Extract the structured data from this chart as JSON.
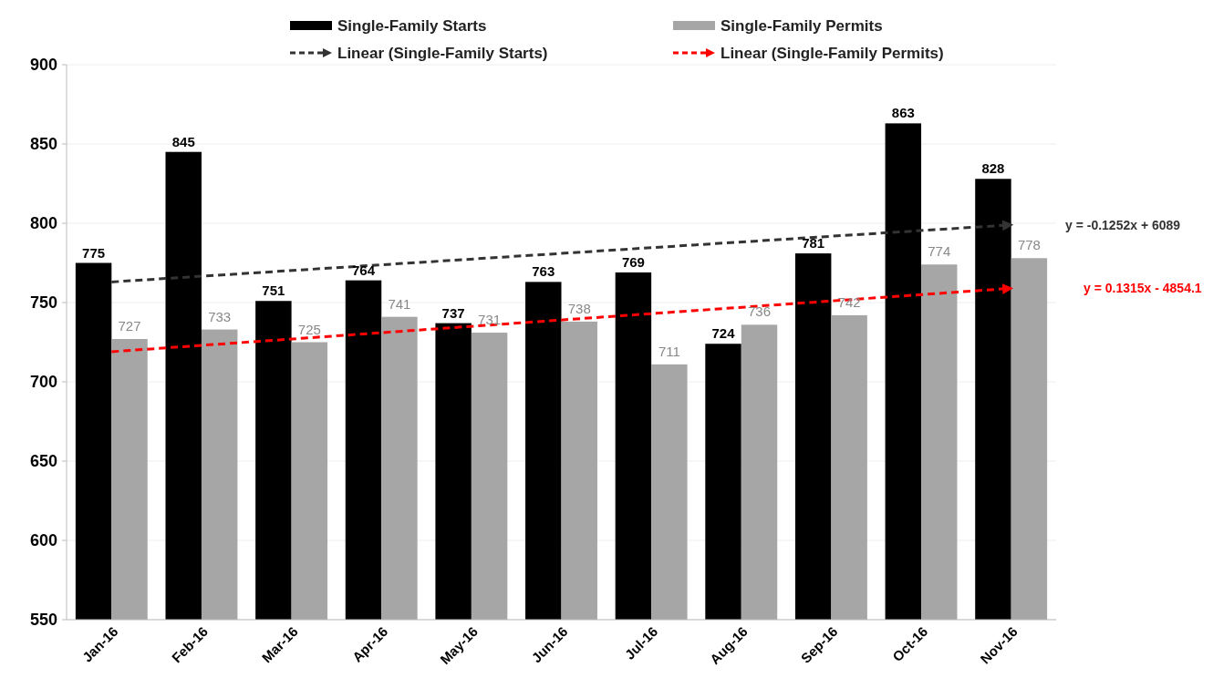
{
  "chart_data": {
    "type": "bar",
    "categories": [
      "Jan-16",
      "Feb-16",
      "Mar-16",
      "Apr-16",
      "May-16",
      "Jun-16",
      "Jul-16",
      "Aug-16",
      "Sep-16",
      "Oct-16",
      "Nov-16"
    ],
    "series": [
      {
        "name": "Single-Family Starts",
        "color": "#000000",
        "values": [
          775,
          845,
          751,
          764,
          737,
          763,
          769,
          724,
          781,
          863,
          828
        ],
        "value_labels": [
          "775",
          "845",
          "751",
          "764",
          "737",
          "763",
          "769",
          "724",
          "781",
          "863",
          "828"
        ]
      },
      {
        "name": "Single-Family Permits",
        "color": "#a6a6a6",
        "values": [
          727,
          733,
          725,
          741,
          731,
          738,
          711,
          736,
          742,
          774,
          778
        ],
        "value_labels": [
          "727",
          "733",
          "725",
          "741",
          "731",
          "738",
          "711",
          "736",
          "742",
          "774",
          "778"
        ]
      },
      {
        "name": "Linear (Single-Family Starts)",
        "type": "line",
        "color": "#333333",
        "line_style": "dashed",
        "x": [
          "Jan-16",
          "Nov-16"
        ],
        "values": [
          763,
          799
        ]
      },
      {
        "name": "Linear (Single-Family Permits)",
        "type": "line",
        "color": "#ff0000",
        "line_style": "dashed",
        "x": [
          "Jan-16",
          "Nov-16"
        ],
        "values": [
          719,
          759
        ]
      }
    ],
    "ylim": [
      550,
      900
    ],
    "yticks": [
      550,
      600,
      650,
      700,
      750,
      800,
      850,
      900
    ],
    "grid": "y",
    "legend": "top",
    "annotations": [
      "y = -0.1252x + 6089",
      "y = 0.1315x  - 4854.1"
    ]
  }
}
